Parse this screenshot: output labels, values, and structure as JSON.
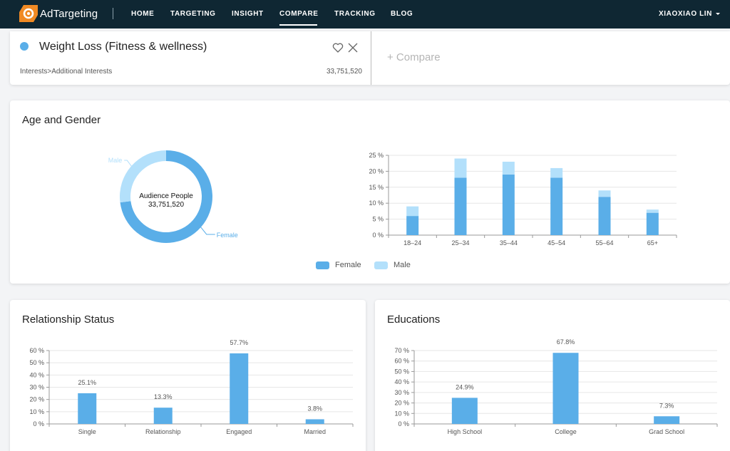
{
  "nav": {
    "logo_text": "AdTargeting",
    "items": [
      {
        "label": "HOME"
      },
      {
        "label": "TARGETING"
      },
      {
        "label": "INSIGHT"
      },
      {
        "label": "COMPARE"
      },
      {
        "label": "TRACKING"
      },
      {
        "label": "BLOG"
      }
    ],
    "active": "COMPARE",
    "user": "XIAOXIAO LIN"
  },
  "audience": {
    "title": "Weight Loss (Fitness & wellness)",
    "path": "Interests>Additional Interests",
    "count": "33,751,520",
    "compare_label": "+ Compare",
    "icons": [
      "heart-icon",
      "close-icon"
    ],
    "dot_color": "#5aaee8"
  },
  "age_gender": {
    "title": "Age and Gender",
    "donut": {
      "center_label": "Audience People",
      "center_value": "33,751,520",
      "labels": {
        "male": "Male",
        "female": "Female"
      }
    },
    "legend": {
      "female": "Female",
      "male": "Male"
    }
  },
  "relationship": {
    "title": "Relationship Status"
  },
  "education": {
    "title": "Educations"
  },
  "colors": {
    "female": "#5aaee8",
    "male": "#b3e0fb",
    "accent": "#5aaee8"
  },
  "chart_data": [
    {
      "type": "pie",
      "labels": [
        "Female",
        "Male"
      ],
      "values": [
        73,
        27
      ],
      "title": "Audience People 33,751,520"
    },
    {
      "type": "bar",
      "stacked": true,
      "categories": [
        "18–24",
        "25–34",
        "35–44",
        "45–54",
        "55–64",
        "65+"
      ],
      "series": [
        {
          "name": "Female",
          "values": [
            6,
            18,
            19,
            18,
            12,
            7
          ]
        },
        {
          "name": "Male",
          "values": [
            3,
            6,
            4,
            3,
            2,
            1
          ]
        }
      ],
      "ylim": [
        0,
        25
      ],
      "yticks": [
        "0 %",
        "5 %",
        "10 %",
        "15 %",
        "20 %",
        "25 %"
      ],
      "legend": "bottom",
      "grid": true
    },
    {
      "type": "bar",
      "categories": [
        "Single",
        "Relationship",
        "Engaged",
        "Married"
      ],
      "values": [
        25.1,
        13.3,
        57.7,
        3.8
      ],
      "data_labels": [
        "25.1%",
        "13.3%",
        "57.7%",
        "3.8%"
      ],
      "ylim": [
        0,
        60
      ],
      "yticks": [
        "0 %",
        "10 %",
        "20 %",
        "30 %",
        "40 %",
        "50 %",
        "60 %"
      ],
      "grid": true
    },
    {
      "type": "bar",
      "categories": [
        "High School",
        "College",
        "Grad School"
      ],
      "values": [
        24.9,
        67.8,
        7.3
      ],
      "data_labels": [
        "24.9%",
        "67.8%",
        "7.3%"
      ],
      "ylim": [
        0,
        70
      ],
      "yticks": [
        "0 %",
        "10 %",
        "20 %",
        "30 %",
        "40 %",
        "50 %",
        "60 %",
        "70 %"
      ],
      "grid": true
    }
  ]
}
